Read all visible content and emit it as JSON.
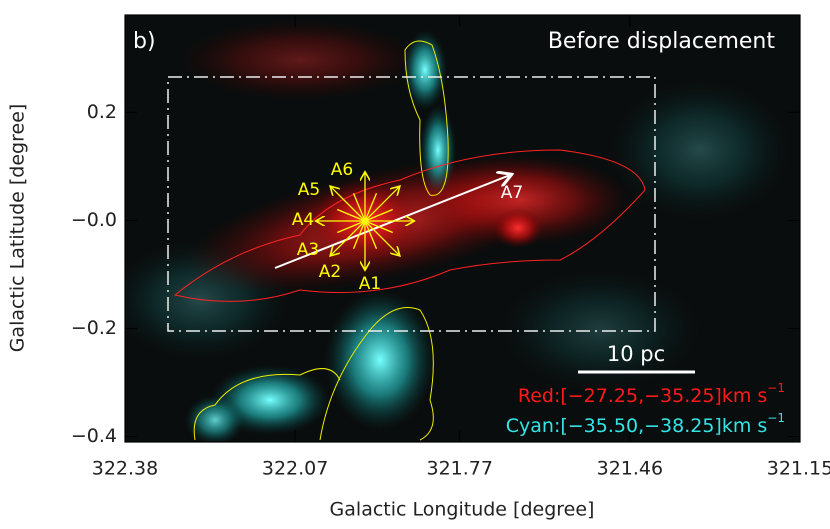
{
  "chart_data": {
    "type": "image",
    "title": "Before displacement",
    "panel_label": "b)",
    "x_label": "Galactic Longitude [degree]",
    "y_label": "Galactic Latitude [degree]",
    "xlim": [
      322.38,
      321.15
    ],
    "ylim": [
      -0.41,
      0.38
    ],
    "xticks": [
      322.38,
      322.07,
      321.77,
      321.46,
      321.15
    ],
    "yticks": [
      0.2,
      {
        "value": 0,
        "label": "−0.0"
      },
      {
        "value": -0.2,
        "label": "−0.2"
      },
      {
        "value": -0.4,
        "label": "−0.4"
      }
    ],
    "arrow_labels": [
      "A1",
      "A2",
      "A3",
      "A4",
      "A5",
      "A6",
      "A7"
    ],
    "scale_bar_label": "10 pc",
    "legend": [
      {
        "name": "Red:[−27.25,−35.25]km s",
        "unit_power": "−1",
        "color": "#ff1a1a"
      },
      {
        "name": "Cyan:[−35.50,−38.25]km s",
        "unit_power": "−1",
        "color": "#33e6e6"
      }
    ]
  }
}
